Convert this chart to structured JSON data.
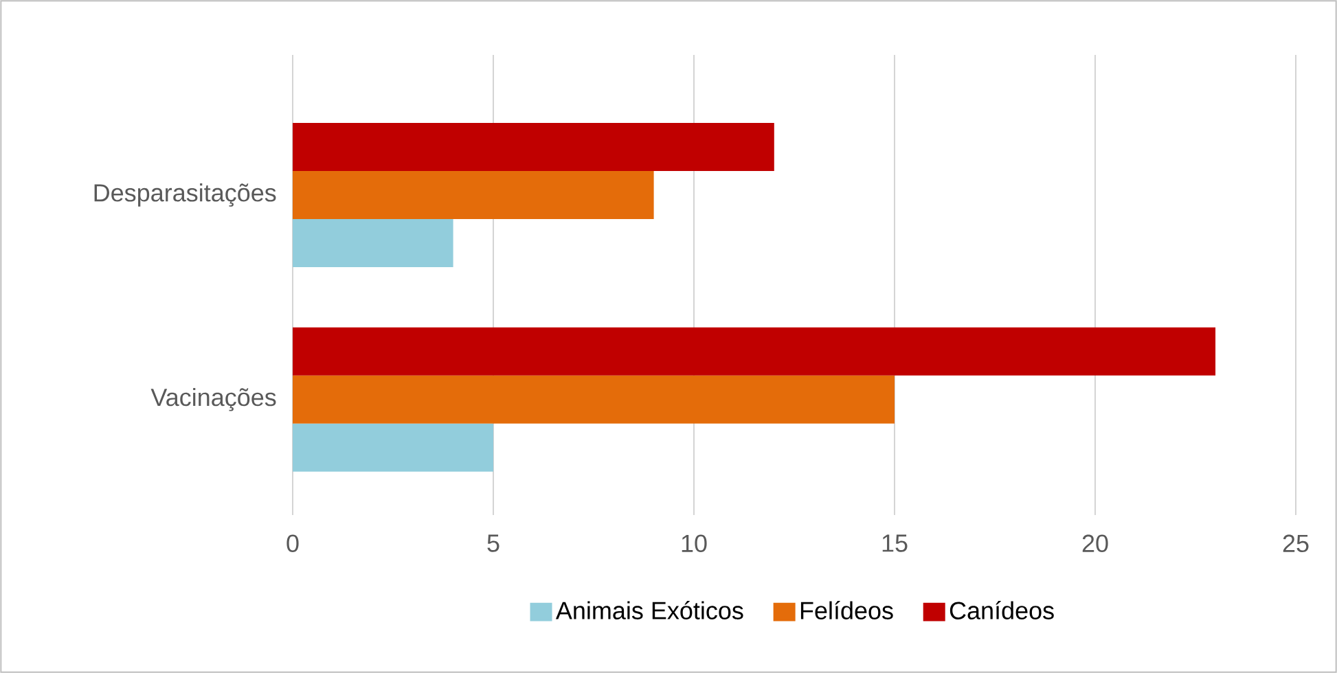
{
  "chart_data": {
    "type": "bar",
    "orientation": "horizontal",
    "categories": [
      "Desparasitações",
      "Vacinações"
    ],
    "series": [
      {
        "name": "Animais Exóticos",
        "color": "#92cddc",
        "values": [
          4,
          5
        ]
      },
      {
        "name": "Felídeos",
        "color": "#e46c0a",
        "values": [
          9,
          15
        ]
      },
      {
        "name": "Canídeos",
        "color": "#c00000",
        "values": [
          12,
          23
        ]
      }
    ],
    "xlim": [
      0,
      25
    ],
    "xticks": [
      0,
      5,
      10,
      15,
      20,
      25
    ],
    "grid": "x",
    "legend": "bottom"
  }
}
